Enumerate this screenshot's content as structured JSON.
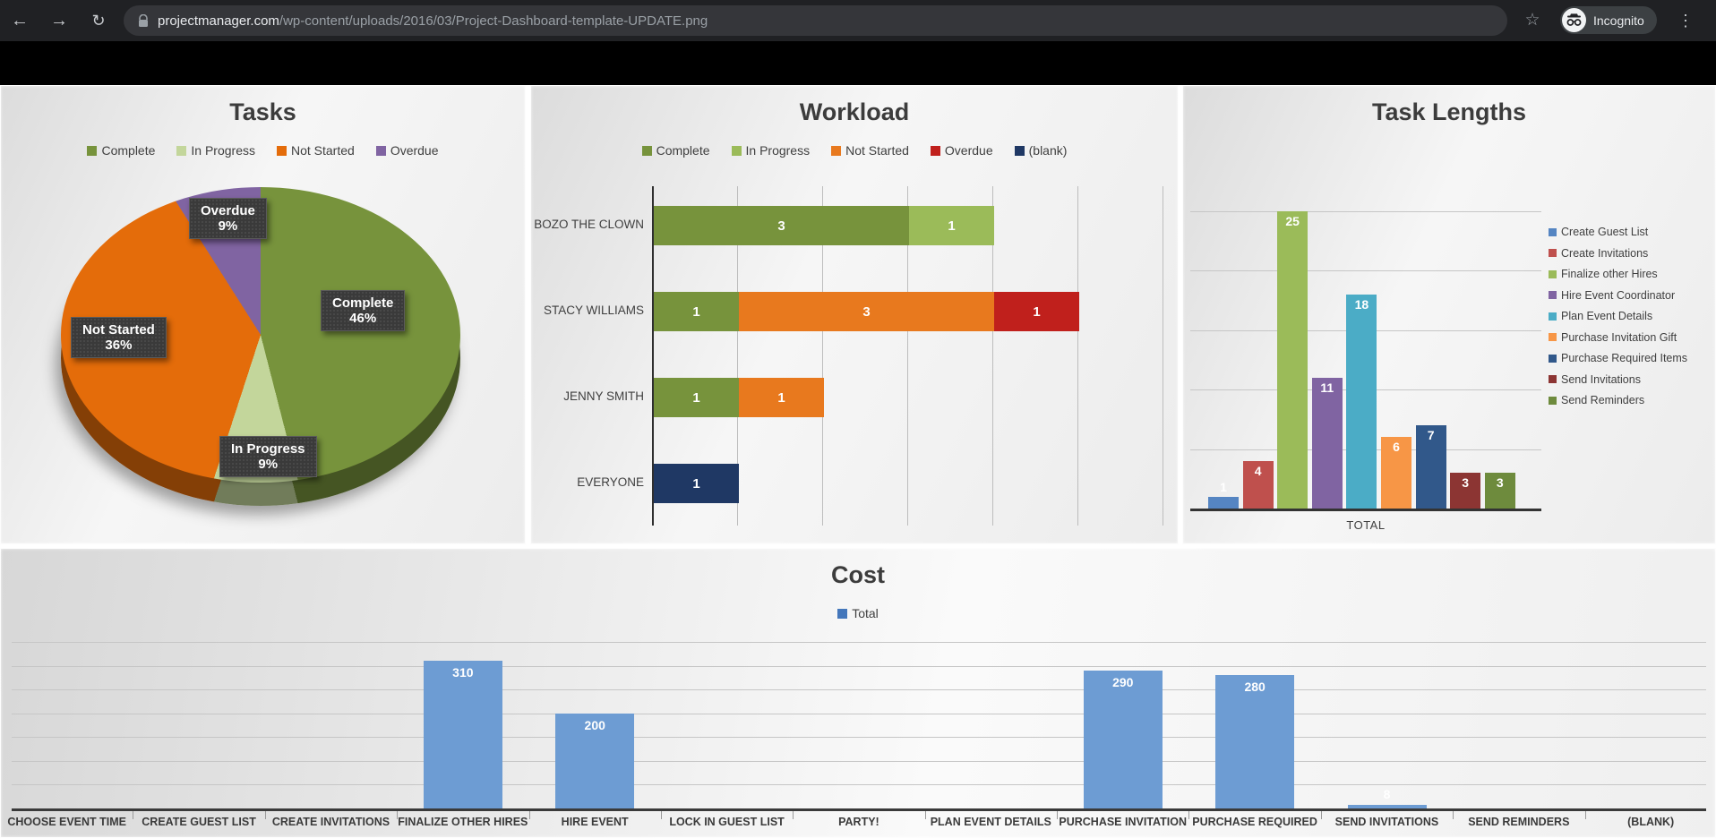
{
  "browser": {
    "url_domain": "projectmanager.com",
    "url_path": "/wp-content/uploads/2016/03/Project-Dashboard-template-UPDATE.png",
    "incognito_label": "Incognito",
    "icons": [
      "back-arrow",
      "forward-arrow",
      "reload",
      "lock",
      "star",
      "incognito",
      "menu-dots"
    ]
  },
  "chart_data": [
    {
      "id": "tasks",
      "type": "pie",
      "title": "Tasks",
      "legend_position": "top",
      "slices": [
        {
          "label": "Complete",
          "pct": 46,
          "color": "#77933C"
        },
        {
          "label": "In Progress",
          "pct": 9,
          "color": "#C3D69B"
        },
        {
          "label": "Not Started",
          "pct": 36,
          "color": "#E46C0A"
        },
        {
          "label": "Overdue",
          "pct": 9,
          "color": "#8064A2"
        }
      ]
    },
    {
      "id": "workload",
      "type": "bar-horizontal-stacked",
      "title": "Workload",
      "legend_position": "top",
      "series": [
        "Complete",
        "In Progress",
        "Not Started",
        "Overdue",
        "(blank)"
      ],
      "series_colors": [
        "#77933C",
        "#9BBB59",
        "#E8791E",
        "#C0201C",
        "#1F3864"
      ],
      "categories": [
        "BOZO THE CLOWN",
        "STACY WILLIAMS",
        "JENNY SMITH",
        "EVERYONE"
      ],
      "values": [
        [
          3,
          1,
          0,
          0,
          0
        ],
        [
          1,
          0,
          3,
          1,
          0
        ],
        [
          1,
          0,
          1,
          0,
          0
        ],
        [
          0,
          0,
          0,
          0,
          1
        ]
      ],
      "xlim": [
        0,
        6
      ],
      "gridline_step": 1,
      "grid": "on"
    },
    {
      "id": "task_lengths",
      "type": "bar",
      "title": "Task Lengths",
      "legend_position": "right",
      "categories": [
        "Create Guest List",
        "Create Invitations",
        "Finalize other Hires",
        "Hire Event Coordinator",
        "Plan Event Details",
        "Purchase Invitation Gift",
        "Purchase Required Items",
        "Send Invitations",
        "Send Reminders"
      ],
      "values": [
        1,
        4,
        25,
        11,
        18,
        6,
        7,
        3,
        3
      ],
      "colors": [
        "#5585C2",
        "#BF504D",
        "#9BBB59",
        "#8064A2",
        "#4BACC6",
        "#F79646",
        "#31588A",
        "#8C3533",
        "#6E8B3D"
      ],
      "xlabel": "TOTAL",
      "ylabel": "",
      "ylim": [
        0,
        27
      ],
      "gridline_step": 5,
      "grid": "on"
    },
    {
      "id": "cost",
      "type": "bar",
      "title": "Cost",
      "legend": [
        "Total"
      ],
      "legend_color": "#4477BB",
      "legend_position": "top",
      "categories": [
        "CHOOSE EVENT TIME",
        "CREATE GUEST LIST",
        "CREATE INVITATIONS",
        "FINALIZE OTHER HIRES",
        "HIRE EVENT",
        "LOCK IN GUEST LIST",
        "PARTY!",
        "PLAN EVENT DETAILS",
        "PURCHASE INVITATION",
        "PURCHASE REQUIRED",
        "SEND INVITATIONS",
        "SEND REMINDERS",
        "(BLANK)"
      ],
      "values": [
        0,
        0,
        0,
        310,
        200,
        0,
        0,
        0,
        290,
        280,
        8,
        0,
        0
      ],
      "bar_color": "#6D9CD3",
      "xlabel": "",
      "ylabel": "",
      "ylim": [
        0,
        350
      ],
      "gridline_step": 50,
      "grid": "on"
    }
  ]
}
